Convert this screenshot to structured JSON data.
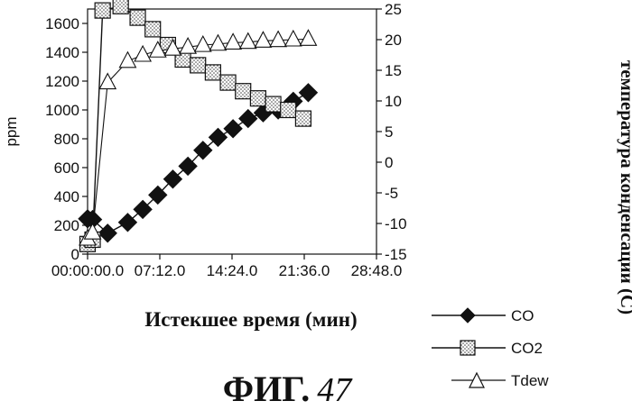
{
  "chart_data": {
    "type": "line",
    "xlabel": "Истекшее время (мин)",
    "ylabel": "ppm",
    "y2label": "температура конденсации (С)",
    "x_tick_labels": [
      "00:00:00.0",
      "07:12.0",
      "14:24.0",
      "21:36.0",
      "28:48.0"
    ],
    "xlim_min": [
      0,
      28.8
    ],
    "x_tick_values_min": [
      0,
      7.2,
      14.4,
      21.6,
      28.8
    ],
    "ylim": [
      0,
      1700
    ],
    "y_ticks": [
      0,
      200,
      400,
      600,
      800,
      1000,
      1200,
      1400,
      1600
    ],
    "y2lim": [
      -15,
      25
    ],
    "y2_ticks": [
      -15,
      -10,
      -5,
      0,
      5,
      10,
      15,
      20,
      25
    ],
    "legend_position": "bottom-right",
    "series": [
      {
        "name": "CO",
        "axis": "left",
        "marker": "diamond-filled",
        "x": [
          0,
          0.5,
          2,
          4,
          5.5,
          7,
          8.5,
          10,
          11.5,
          13,
          14.5,
          16,
          17.5,
          19,
          20.5,
          22
        ],
        "y": [
          245,
          240,
          145,
          220,
          310,
          410,
          520,
          610,
          720,
          810,
          870,
          940,
          980,
          1000,
          1060,
          1120
        ]
      },
      {
        "name": "CO2",
        "axis": "left",
        "marker": "square-dotted",
        "x": [
          0,
          0.5,
          1.5,
          3.3,
          5,
          6.5,
          8,
          9.5,
          11,
          12.5,
          14,
          15.5,
          17,
          18.5,
          20,
          21.5
        ],
        "y": [
          70,
          100,
          1690,
          1720,
          1640,
          1560,
          1450,
          1350,
          1310,
          1260,
          1190,
          1130,
          1080,
          1040,
          1000,
          940
        ]
      },
      {
        "name": "Tdew",
        "axis": "right",
        "marker": "triangle-open",
        "x": [
          0,
          0.5,
          2,
          4,
          5.5,
          7,
          8.5,
          10,
          11.5,
          13,
          14.5,
          16,
          17.5,
          19,
          20.5,
          22
        ],
        "y": [
          -12.5,
          -11.5,
          13,
          16.5,
          17.5,
          18.2,
          18.5,
          18.8,
          19.1,
          19.3,
          19.5,
          19.6,
          19.8,
          19.9,
          20.0,
          20.1
        ]
      }
    ]
  },
  "caption": {
    "prefix": "ФИГ.",
    "number": "47"
  },
  "colors": {
    "ink": "#111111",
    "marker_fill_open": "#ffffff",
    "dot_pattern": "#444444"
  }
}
